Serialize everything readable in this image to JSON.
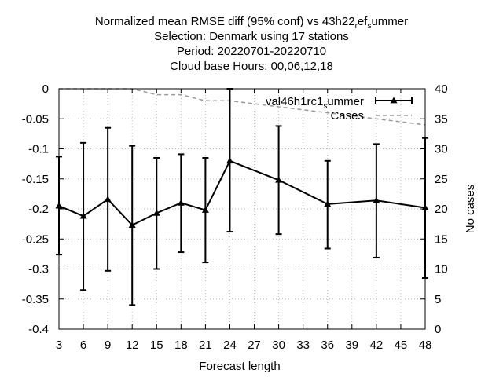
{
  "chart_data": {
    "type": "line",
    "title_lines": [
      "Normalized mean RMSE diff (95% conf) vs 43h22",
      "Selection: Denmark using    17 stations",
      "Period: 20220701-20220710",
      "Cloud base   Hours:  00,06,12,18"
    ],
    "title_suffix": {
      "sub1": "r",
      "mid": "ef",
      "sub2": "s",
      "tail": "ummer"
    },
    "xlabel": "Forecast length",
    "ylabel": "",
    "y2label": "No cases",
    "xlim": [
      3,
      48
    ],
    "ylim": [
      -0.4,
      0
    ],
    "y2lim": [
      0,
      40
    ],
    "xticks": [
      "3",
      "6",
      "9",
      "12",
      "15",
      "18",
      "21",
      "24",
      "27",
      "30",
      "33",
      "36",
      "39",
      "42",
      "45",
      "48"
    ],
    "yticks": [
      "0",
      "-0.05",
      "-0.1",
      "-0.15",
      "-0.2",
      "-0.25",
      "-0.3",
      "-0.35",
      "-0.4"
    ],
    "y2ticks": [
      "40",
      "35",
      "30",
      "25",
      "20",
      "15",
      "10",
      "5",
      "0"
    ],
    "grid": true,
    "legend_position": "top-right",
    "series": [
      {
        "name": "val46h1rc1",
        "name_sub": "s",
        "name_tail": "ummer",
        "color": "#000000",
        "marker": "triangle",
        "x": [
          3,
          6,
          9,
          12,
          15,
          18,
          21,
          24,
          30,
          36,
          42,
          48
        ],
        "y": [
          -0.195,
          -0.212,
          -0.184,
          -0.227,
          -0.207,
          -0.19,
          -0.202,
          -0.12,
          -0.152,
          -0.192,
          -0.186,
          -0.198
        ],
        "err_low": [
          -0.276,
          -0.335,
          -0.303,
          -0.36,
          -0.3,
          -0.272,
          -0.289,
          -0.238,
          -0.242,
          -0.266,
          -0.281,
          -0.315
        ],
        "err_high": [
          -0.113,
          -0.09,
          -0.065,
          -0.095,
          -0.115,
          -0.109,
          -0.115,
          0.0,
          -0.062,
          -0.12,
          -0.092,
          -0.082
        ]
      },
      {
        "name": "Cases",
        "color": "#999999",
        "axis": "y2",
        "dashed": true,
        "x": [
          3,
          12,
          15,
          18,
          21,
          24,
          30,
          36,
          42,
          45,
          48
        ],
        "y": [
          40,
          40,
          39,
          39,
          38,
          38,
          37,
          36,
          35,
          34.5,
          34
        ]
      }
    ]
  }
}
